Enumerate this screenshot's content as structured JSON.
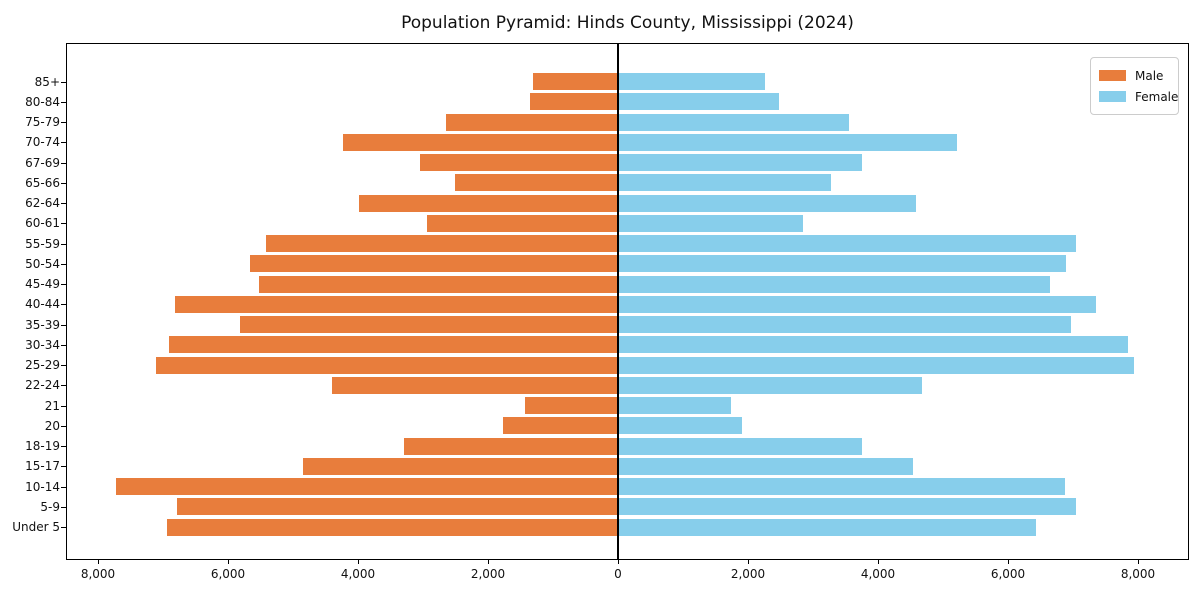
{
  "title": "Population Pyramid: Hinds County, Mississippi (2024)",
  "legend": {
    "male_label": "Male",
    "female_label": "Female",
    "position": "upper right"
  },
  "colors": {
    "male": "#e87d3c",
    "female": "#87ceeb",
    "axis": "#000000",
    "legend_border": "#cccccc",
    "background": "#ffffff"
  },
  "axis": {
    "x_tick_labels": [
      "8,000",
      "6,000",
      "4,000",
      "2,000",
      "0",
      "2,000",
      "4,000",
      "6,000",
      "8,000"
    ],
    "x_tick_values": [
      -8000,
      -6000,
      -4000,
      -2000,
      0,
      2000,
      4000,
      6000,
      8000
    ],
    "grid": "off"
  },
  "chart_data": {
    "type": "bar",
    "subtype": "population-pyramid",
    "title": "Population Pyramid: Hinds County, Mississippi (2024)",
    "categories": [
      "85+",
      "80-84",
      "75-79",
      "70-74",
      "67-69",
      "65-66",
      "62-64",
      "60-61",
      "55-59",
      "50-54",
      "45-49",
      "40-44",
      "35-39",
      "30-34",
      "25-29",
      "22-24",
      "21",
      "20",
      "18-19",
      "15-17",
      "10-14",
      "5-9",
      "Under 5"
    ],
    "series": [
      {
        "name": "Male",
        "values": [
          1310,
          1360,
          2650,
          4230,
          3040,
          2510,
          3990,
          2940,
          5410,
          5660,
          5520,
          6810,
          5810,
          6910,
          7110,
          4400,
          1430,
          1770,
          3290,
          4850,
          7720,
          6780,
          6940
        ]
      },
      {
        "name": "Female",
        "values": [
          2260,
          2480,
          3560,
          5210,
          3760,
          3270,
          4590,
          2850,
          7050,
          6890,
          6640,
          7360,
          6970,
          7840,
          7940,
          4670,
          1740,
          1910,
          3750,
          4540,
          6880,
          7050,
          6430
        ]
      }
    ],
    "xlabel": "",
    "ylabel": "",
    "xlim": [
      -8500,
      8800
    ],
    "legend_position": "upper right",
    "grid": false,
    "note": "Male bars extend left of the zero axis line, female bars extend right"
  }
}
